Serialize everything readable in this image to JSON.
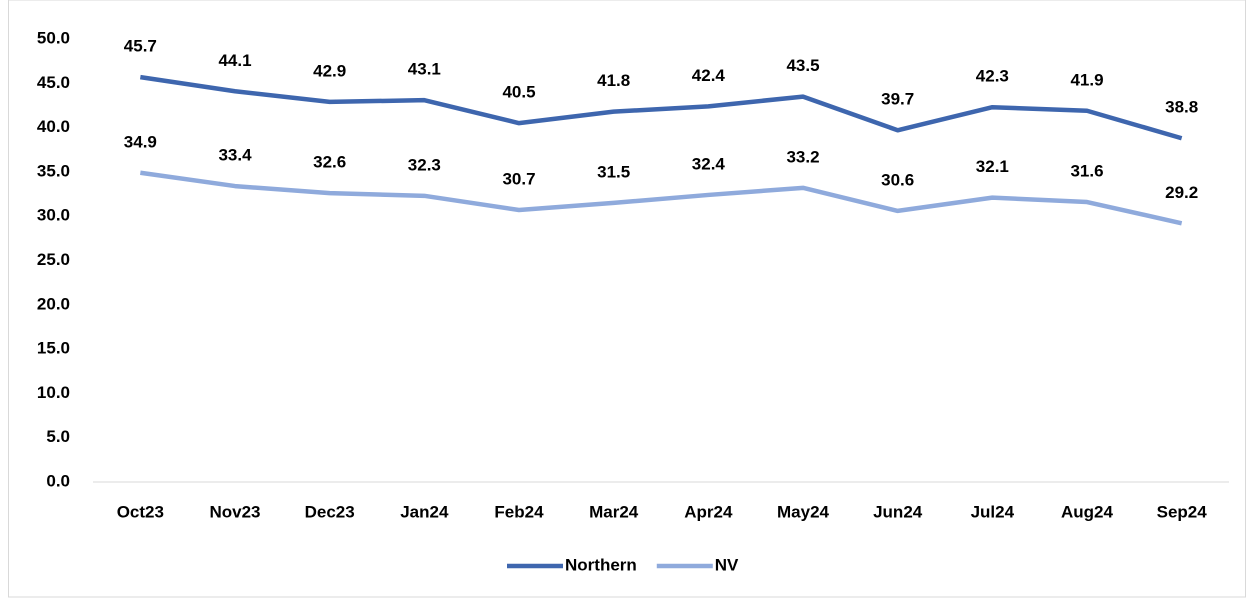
{
  "chart_data": {
    "type": "line",
    "categories": [
      "Oct23",
      "Nov23",
      "Dec23",
      "Jan24",
      "Feb24",
      "Mar24",
      "Apr24",
      "May24",
      "Jun24",
      "Jul24",
      "Aug24",
      "Sep24"
    ],
    "series": [
      {
        "name": "Northern",
        "color": "#3e66ae",
        "values": [
          45.7,
          44.1,
          42.9,
          43.1,
          40.5,
          41.8,
          42.4,
          43.5,
          39.7,
          42.3,
          41.9,
          38.8
        ]
      },
      {
        "name": "NV",
        "color": "#8faadc",
        "values": [
          34.9,
          33.4,
          32.6,
          32.3,
          30.7,
          31.5,
          32.4,
          33.2,
          30.6,
          32.1,
          31.6,
          29.2
        ]
      }
    ],
    "ylim": [
      0,
      50
    ],
    "yticks": [
      {
        "value": 0,
        "label": "0.0"
      },
      {
        "value": 5,
        "label": "5.0"
      },
      {
        "value": 10,
        "label": "10.0"
      },
      {
        "value": 15,
        "label": "15.0"
      },
      {
        "value": 20,
        "label": "20.0"
      },
      {
        "value": 25,
        "label": "25.0"
      },
      {
        "value": 30,
        "label": "30.0"
      },
      {
        "value": 35,
        "label": "35.0"
      },
      {
        "value": 40,
        "label": "40.0"
      },
      {
        "value": 45,
        "label": "45.0"
      },
      {
        "value": 50,
        "label": "50.0"
      }
    ],
    "grid": false,
    "legend": "bottom"
  }
}
